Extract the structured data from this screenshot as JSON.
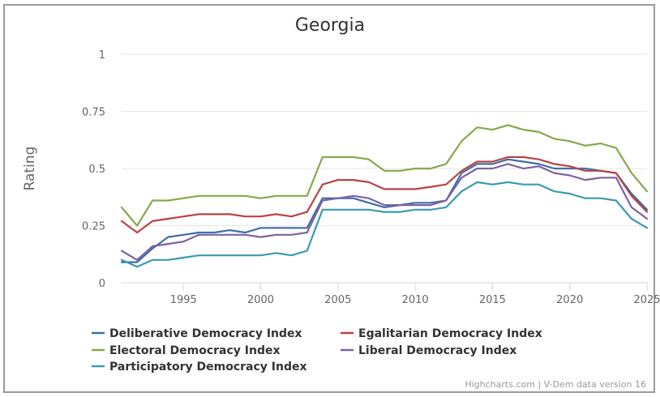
{
  "chart_data": {
    "type": "line",
    "title": "Georgia",
    "xlabel": "",
    "ylabel": "Rating",
    "xlim": [
      1991,
      2025
    ],
    "ylim": [
      0,
      1
    ],
    "grid": true,
    "yticks": [
      0,
      0.25,
      0.5,
      0.75,
      1
    ],
    "ytick_labels": [
      "0",
      "0.25",
      "0.5",
      "0.75",
      "1"
    ],
    "xticks": [
      1995,
      2000,
      2005,
      2010,
      2015,
      2020,
      2025
    ],
    "xtick_labels": [
      "1995",
      "2000",
      "2005",
      "2010",
      "2015",
      "2020",
      "2025"
    ],
    "legend_position": "bottom",
    "x": [
      1991,
      1992,
      1993,
      1994,
      1995,
      1996,
      1997,
      1998,
      1999,
      2000,
      2001,
      2002,
      2003,
      2004,
      2005,
      2006,
      2007,
      2008,
      2009,
      2010,
      2011,
      2012,
      2013,
      2014,
      2015,
      2016,
      2017,
      2018,
      2019,
      2020,
      2021,
      2022,
      2023,
      2024,
      2025
    ],
    "series": [
      {
        "name": "Deliberative Democracy Index",
        "color": "#3d6fa8",
        "values": [
          0.09,
          0.09,
          0.15,
          0.2,
          0.21,
          0.22,
          0.22,
          0.23,
          0.22,
          0.24,
          0.24,
          0.24,
          0.24,
          0.37,
          0.37,
          0.37,
          0.35,
          0.33,
          0.34,
          0.35,
          0.35,
          0.36,
          0.48,
          0.52,
          0.52,
          0.54,
          0.53,
          0.52,
          0.5,
          0.5,
          0.5,
          0.49,
          0.48,
          0.39,
          0.32
        ]
      },
      {
        "name": "Egalitarian Democracy Index",
        "color": "#b94343",
        "values": [
          0.27,
          0.22,
          0.27,
          0.28,
          0.29,
          0.3,
          0.3,
          0.3,
          0.29,
          0.29,
          0.3,
          0.29,
          0.31,
          0.43,
          0.45,
          0.45,
          0.44,
          0.41,
          0.41,
          0.41,
          0.42,
          0.43,
          0.49,
          0.53,
          0.53,
          0.55,
          0.55,
          0.54,
          0.52,
          0.51,
          0.49,
          0.49,
          0.48,
          0.38,
          0.31
        ]
      },
      {
        "name": "Electoral Democracy Index",
        "color": "#86a84a",
        "values": [
          0.33,
          0.25,
          0.36,
          0.36,
          0.37,
          0.38,
          0.38,
          0.38,
          0.38,
          0.37,
          0.38,
          0.38,
          0.38,
          0.55,
          0.55,
          0.55,
          0.54,
          0.49,
          0.49,
          0.5,
          0.5,
          0.52,
          0.62,
          0.68,
          0.67,
          0.69,
          0.67,
          0.66,
          0.63,
          0.62,
          0.6,
          0.61,
          0.59,
          0.48,
          0.4
        ]
      },
      {
        "name": "Liberal Democracy Index",
        "color": "#7d62a3",
        "values": [
          0.14,
          0.1,
          0.16,
          0.17,
          0.18,
          0.21,
          0.21,
          0.21,
          0.21,
          0.2,
          0.21,
          0.21,
          0.22,
          0.36,
          0.37,
          0.38,
          0.37,
          0.34,
          0.34,
          0.34,
          0.34,
          0.36,
          0.46,
          0.5,
          0.5,
          0.52,
          0.5,
          0.51,
          0.48,
          0.47,
          0.45,
          0.46,
          0.46,
          0.33,
          0.28
        ]
      },
      {
        "name": "Participatory Democracy Index",
        "color": "#3a9ab0",
        "values": [
          0.1,
          0.07,
          0.1,
          0.1,
          0.11,
          0.12,
          0.12,
          0.12,
          0.12,
          0.12,
          0.13,
          0.12,
          0.14,
          0.32,
          0.32,
          0.32,
          0.32,
          0.31,
          0.31,
          0.32,
          0.32,
          0.33,
          0.4,
          0.44,
          0.43,
          0.44,
          0.43,
          0.43,
          0.4,
          0.39,
          0.37,
          0.37,
          0.36,
          0.28,
          0.24
        ]
      }
    ],
    "credits": "Highcharts.com | V-Dem data version 16"
  }
}
